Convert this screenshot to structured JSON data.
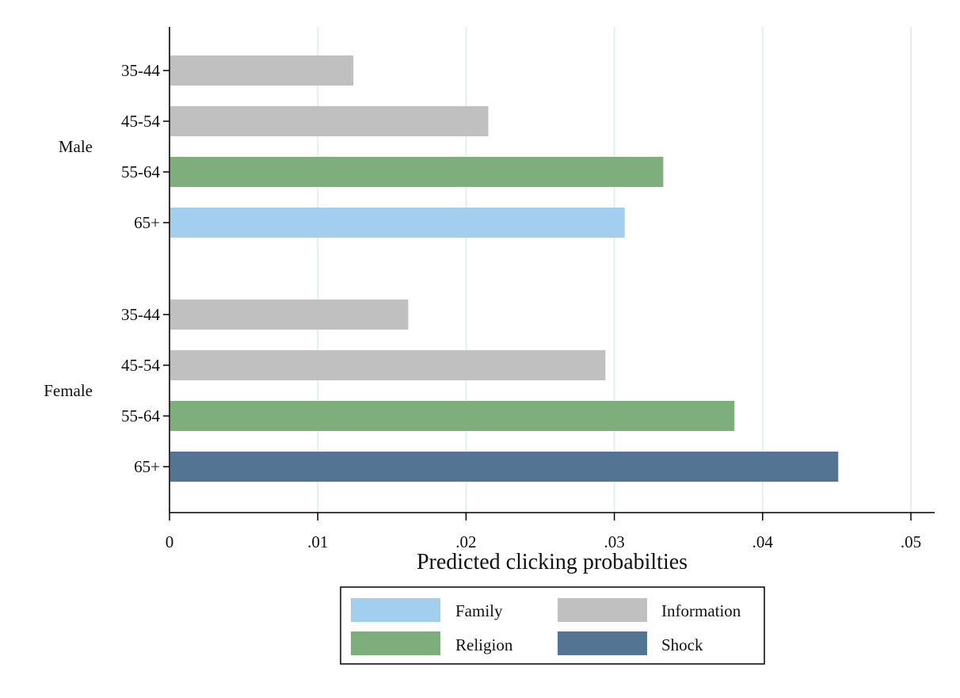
{
  "chart_data": {
    "type": "bar",
    "orientation": "horizontal",
    "xlabel": "Predicted clicking probabilties",
    "xlim": [
      0,
      0.05
    ],
    "xticks": [
      {
        "value": 0,
        "label": "0"
      },
      {
        "value": 0.01,
        "label": ".01"
      },
      {
        "value": 0.02,
        "label": ".02"
      },
      {
        "value": 0.03,
        "label": ".03"
      },
      {
        "value": 0.04,
        "label": ".04"
      },
      {
        "value": 0.05,
        "label": ".05"
      }
    ],
    "grid": "vertical",
    "groups": [
      {
        "name": "Male",
        "bars": [
          {
            "label": "35-44",
            "value": 0.0124,
            "category": "Information"
          },
          {
            "label": "45-54",
            "value": 0.0215,
            "category": "Information"
          },
          {
            "label": "55-64",
            "value": 0.0333,
            "category": "Religion"
          },
          {
            "label": "65+",
            "value": 0.0307,
            "category": "Family"
          }
        ]
      },
      {
        "name": "Female",
        "bars": [
          {
            "label": "35-44",
            "value": 0.0161,
            "category": "Information"
          },
          {
            "label": "45-54",
            "value": 0.0294,
            "category": "Information"
          },
          {
            "label": "55-64",
            "value": 0.0381,
            "category": "Religion"
          },
          {
            "label": "65+",
            "value": 0.0451,
            "category": "Shock"
          }
        ]
      }
    ],
    "legend": {
      "placement": "bottom",
      "items": [
        {
          "label": "Family",
          "color": "#a3cfee"
        },
        {
          "label": "Information",
          "color": "#c0c0c0"
        },
        {
          "label": "Religion",
          "color": "#7fae7d"
        },
        {
          "label": "Shock",
          "color": "#537493"
        }
      ]
    }
  }
}
